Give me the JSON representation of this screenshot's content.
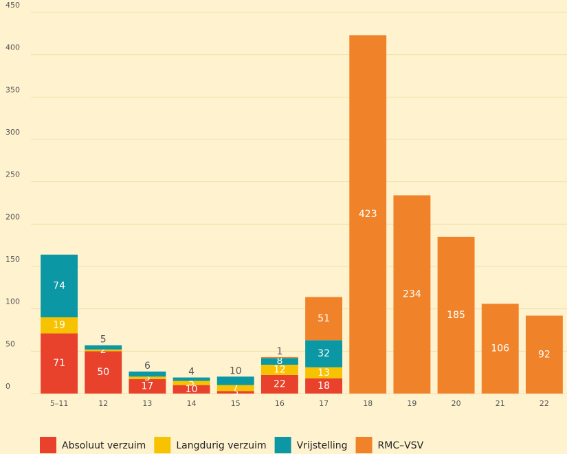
{
  "chart_data": {
    "type": "stacked_bar",
    "categories": [
      "5–11",
      "12",
      "13",
      "14",
      "15",
      "16",
      "17",
      "18",
      "19",
      "20",
      "21",
      "22"
    ],
    "series": [
      {
        "name": "Absoluut verzuim",
        "color": "#e8412c",
        "values": [
          71,
          50,
          17,
          10,
          3,
          22,
          18,
          null,
          null,
          null,
          null,
          null
        ]
      },
      {
        "name": "Langdurig verzuim",
        "color": "#f7c300",
        "values": [
          19,
          2,
          3,
          5,
          7,
          12,
          13,
          null,
          null,
          null,
          null,
          null
        ]
      },
      {
        "name": "Vrijstelling",
        "color": "#0b97a3",
        "values": [
          74,
          5,
          6,
          4,
          10,
          8,
          32,
          null,
          null,
          null,
          null,
          null
        ]
      },
      {
        "name": "RMC–VSV",
        "color": "#f0832a",
        "values": [
          null,
          null,
          null,
          null,
          null,
          1,
          51,
          423,
          234,
          185,
          106,
          92
        ]
      }
    ],
    "ylim": [
      0,
      450
    ],
    "yticks": [
      0,
      50,
      100,
      150,
      200,
      250,
      300,
      350,
      400,
      450
    ],
    "grid": true,
    "legend": "bottom"
  }
}
